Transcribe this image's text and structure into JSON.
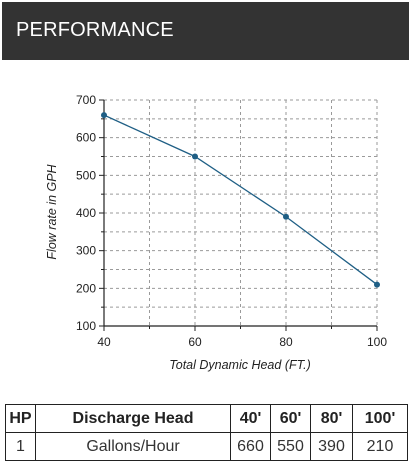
{
  "header": {
    "title": "PERFORMANCE"
  },
  "chart_data": {
    "type": "line",
    "x": [
      40,
      60,
      80,
      100
    ],
    "series": [
      {
        "values": [
          660,
          550,
          390,
          210
        ]
      }
    ],
    "xlabel": "Total Dynamic Head (FT.)",
    "ylabel": "Flow rate in GPH",
    "xlim": [
      40,
      100
    ],
    "ylim": [
      100,
      700
    ],
    "x_ticks": [
      40,
      60,
      80,
      100
    ],
    "y_ticks": [
      100,
      200,
      300,
      400,
      500,
      600,
      700
    ],
    "grid": true,
    "line_color": "#1f5f85",
    "point_color": "#1f5f85"
  },
  "table": {
    "headers": [
      "HP",
      "Discharge Head",
      "40'",
      "60'",
      "80'",
      "100'"
    ],
    "rows": [
      [
        "1",
        "Gallons/Hour",
        "660",
        "550",
        "390",
        "210"
      ]
    ]
  }
}
